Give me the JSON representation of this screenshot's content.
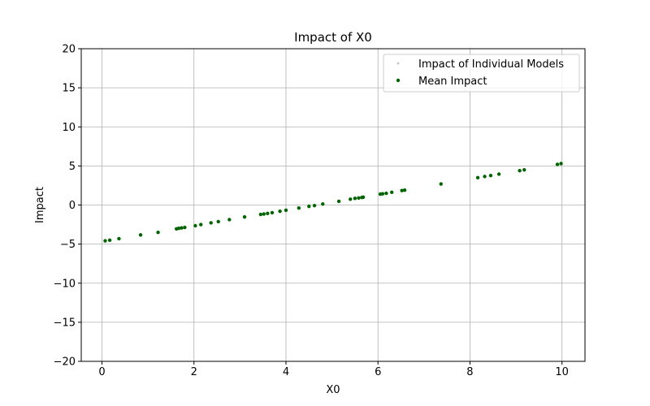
{
  "chart_data": {
    "type": "scatter",
    "title": "Impact of X0",
    "xlabel": "X0",
    "ylabel": "Impact",
    "xlim": [
      -0.45,
      10.5
    ],
    "ylim": [
      -20,
      20
    ],
    "xticks": [
      0,
      2,
      4,
      6,
      8,
      10
    ],
    "yticks": [
      -20,
      -15,
      -10,
      -5,
      0,
      5,
      10,
      15,
      20
    ],
    "xtick_labels": [
      "0",
      "2",
      "4",
      "6",
      "8",
      "10"
    ],
    "ytick_labels": [
      "−20",
      "−15",
      "−10",
      "−5",
      "0",
      "5",
      "10",
      "15",
      "20"
    ],
    "grid": true,
    "legend_position": "upper right",
    "colors": {
      "individual": "#c8c8c8",
      "mean": "#006400",
      "grid": "#b0b0b0"
    },
    "legend": [
      {
        "label": "Impact of Individual Models",
        "color": "#c8c8c8"
      },
      {
        "label": "Mean Impact",
        "color": "#006400"
      }
    ],
    "series": [
      {
        "name": "Impact of Individual Models",
        "points": []
      },
      {
        "name": "Mean Impact",
        "points": [
          [
            0.07,
            -4.58
          ],
          [
            0.17,
            -4.5
          ],
          [
            0.37,
            -4.3
          ],
          [
            0.84,
            -3.83
          ],
          [
            1.22,
            -3.5
          ],
          [
            1.62,
            -3.05
          ],
          [
            1.67,
            -2.98
          ],
          [
            1.73,
            -2.93
          ],
          [
            1.8,
            -2.87
          ],
          [
            2.03,
            -2.65
          ],
          [
            2.15,
            -2.5
          ],
          [
            2.37,
            -2.28
          ],
          [
            2.53,
            -2.12
          ],
          [
            2.77,
            -1.87
          ],
          [
            3.1,
            -1.53
          ],
          [
            3.45,
            -1.2
          ],
          [
            3.52,
            -1.15
          ],
          [
            3.6,
            -1.07
          ],
          [
            3.7,
            -0.98
          ],
          [
            3.87,
            -0.8
          ],
          [
            4.0,
            -0.67
          ],
          [
            4.28,
            -0.38
          ],
          [
            4.5,
            -0.17
          ],
          [
            4.62,
            -0.07
          ],
          [
            4.8,
            0.13
          ],
          [
            5.15,
            0.47
          ],
          [
            5.4,
            0.75
          ],
          [
            5.5,
            0.85
          ],
          [
            5.58,
            0.9
          ],
          [
            5.65,
            0.97
          ],
          [
            5.68,
            1.0
          ],
          [
            6.05,
            1.4
          ],
          [
            6.1,
            1.43
          ],
          [
            6.18,
            1.5
          ],
          [
            6.3,
            1.63
          ],
          [
            6.52,
            1.85
          ],
          [
            6.58,
            1.9
          ],
          [
            7.37,
            2.7
          ],
          [
            8.17,
            3.5
          ],
          [
            8.32,
            3.65
          ],
          [
            8.45,
            3.77
          ],
          [
            8.63,
            3.95
          ],
          [
            9.08,
            4.4
          ],
          [
            9.18,
            4.5
          ],
          [
            9.9,
            5.2
          ],
          [
            9.98,
            5.3
          ]
        ]
      }
    ]
  }
}
